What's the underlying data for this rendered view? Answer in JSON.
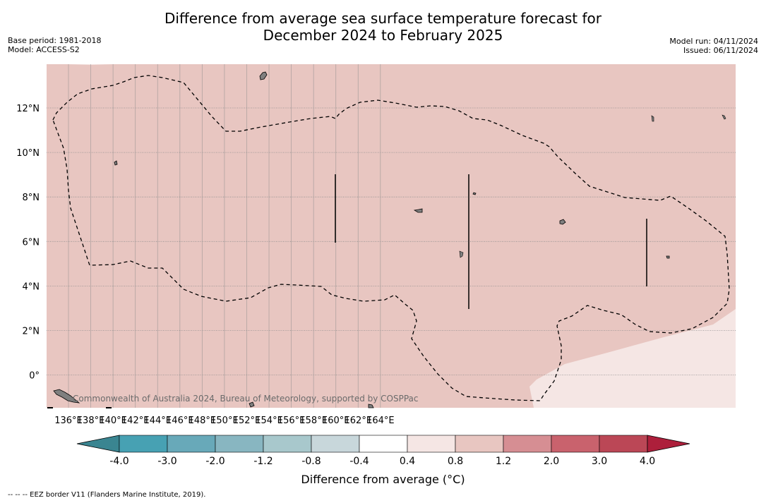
{
  "title_line1": "Difference from average sea surface temperature forecast for",
  "title_line2": "December 2024 to February 2025",
  "base_period": "Base period: 1981-2018",
  "model": "Model: ACCESS-S2",
  "model_run": "Model run: 04/11/2024",
  "issued": "Issued: 06/11/2024",
  "credit": "Commonwealth of Australia 2024, Bureau of Meteorology, supported by COSPPac",
  "footnote": "--  --  -- EEZ border V11 (Flanders Marine Institute, 2019).",
  "lon_ticks": [
    "136°E",
    "138°E",
    "140°E",
    "142°E",
    "144°E",
    "146°E",
    "148°E",
    "150°E",
    "152°E",
    "154°E",
    "156°E",
    "158°E",
    "160°E",
    "162°E",
    "164°E"
  ],
  "lat_ticks": [
    "12°N",
    "10°N",
    "8°N",
    "6°N",
    "4°N",
    "2°N",
    "0°"
  ],
  "colorbar": {
    "label": "Difference from average (°C)",
    "ticks": [
      "-4.0",
      "-3.0",
      "-2.0",
      "-1.2",
      "-0.8",
      "-0.4",
      "0.4",
      "0.8",
      "1.2",
      "2.0",
      "3.0",
      "4.0"
    ],
    "colors": [
      "#47a1b3",
      "#68a9b9",
      "#88b6c1",
      "#a8c8cc",
      "#c8d7db",
      "#ffffff",
      "#f5e6e4",
      "#e8c6c1",
      "#d68e93",
      "#c9626d",
      "#bb4756"
    ],
    "under_color": "#3a8591",
    "over_color": "#ad1f3b"
  },
  "map_fill": {
    "main": "#e8c6c1",
    "lighter": "#f5e6e4"
  }
}
